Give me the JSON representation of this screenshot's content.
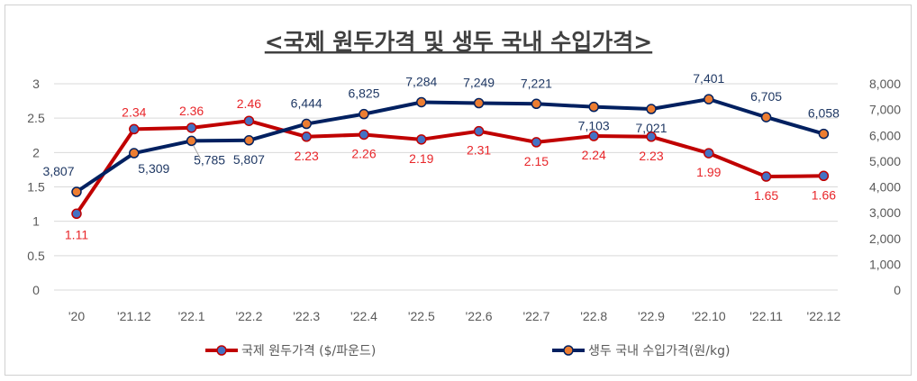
{
  "chart_data": {
    "type": "line",
    "title": "<국제 원두가격 및 생두 국내 수입가격>",
    "categories": [
      "'20",
      "'21.12",
      "'22.1",
      "'22.2",
      "'22.3",
      "'22.4",
      "'22.5",
      "'22.6",
      "'22.7",
      "'22.8",
      "'22.9",
      "'22.10",
      "'22.11",
      "'22.12"
    ],
    "y_left": {
      "range": [
        0,
        3
      ],
      "ticks": [
        "0",
        "0.5",
        "1",
        "1.5",
        "2",
        "2.5",
        "3"
      ]
    },
    "y_right": {
      "range": [
        0,
        8000
      ],
      "ticks": [
        "0",
        "1,000",
        "2,000",
        "3,000",
        "4,000",
        "5,000",
        "6,000",
        "7,000",
        "8,000"
      ]
    },
    "grid": true,
    "legend_position": "bottom",
    "series": [
      {
        "name": "국제 원두가격 ($/파운드)",
        "axis": "left",
        "color": "#c00000",
        "marker_color": "#4472c4",
        "values": [
          1.11,
          2.34,
          2.36,
          2.46,
          2.23,
          2.26,
          2.19,
          2.31,
          2.15,
          2.24,
          2.23,
          1.99,
          1.65,
          1.66
        ],
        "labels": [
          "1.11",
          "2.34",
          "2.36",
          "2.46",
          "2.23",
          "2.26",
          "2.19",
          "2.31",
          "2.15",
          "2.24",
          "2.23",
          "1.99",
          "1.65",
          "1.66"
        ]
      },
      {
        "name": "생두 국내 수입가격(원/kg)",
        "axis": "right",
        "color": "#002060",
        "marker_color": "#ed7d31",
        "values": [
          3807,
          5309,
          5785,
          5807,
          6444,
          6825,
          7284,
          7249,
          7221,
          7103,
          7021,
          7401,
          6705,
          6058
        ],
        "labels": [
          "3,807",
          "5,309",
          "5,785",
          "5,807",
          "6,444",
          "6,825",
          "7,284",
          "7,249",
          "7,221",
          "7,103",
          "7,021",
          "7,401",
          "6,705",
          "6,058"
        ]
      }
    ]
  }
}
